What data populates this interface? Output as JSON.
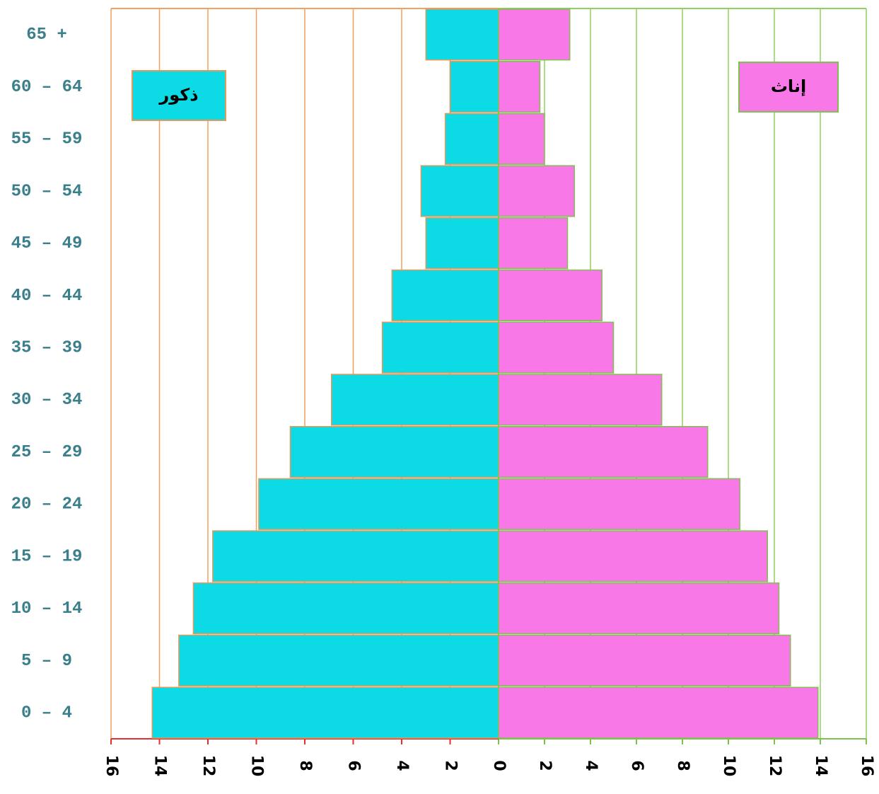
{
  "chart_data": {
    "type": "pyramid",
    "categories": [
      "0 – 4",
      "5 – 9",
      "10 – 14",
      "15 – 19",
      "20 – 24",
      "25 – 29",
      "30 – 34",
      "35 – 39",
      "40 – 44",
      "45 – 49",
      "50 – 54",
      "55 – 59",
      "60 – 64",
      "65 +"
    ],
    "series": [
      {
        "name": "ذكور",
        "color": "#0cdbe6",
        "values": [
          14.3,
          13.2,
          12.6,
          11.8,
          9.9,
          8.6,
          6.9,
          4.8,
          4.4,
          3.0,
          3.2,
          2.2,
          2.0,
          3.0
        ]
      },
      {
        "name": "إناث",
        "color": "#f878e8",
        "values": [
          13.9,
          12.7,
          12.2,
          11.7,
          10.5,
          9.1,
          7.1,
          5.0,
          4.5,
          3.0,
          3.3,
          2.0,
          1.8,
          3.1
        ]
      }
    ],
    "xlim": [
      0,
      16
    ],
    "xticks": [
      0,
      2,
      4,
      6,
      8,
      10,
      12,
      14,
      16
    ],
    "grid": true
  }
}
